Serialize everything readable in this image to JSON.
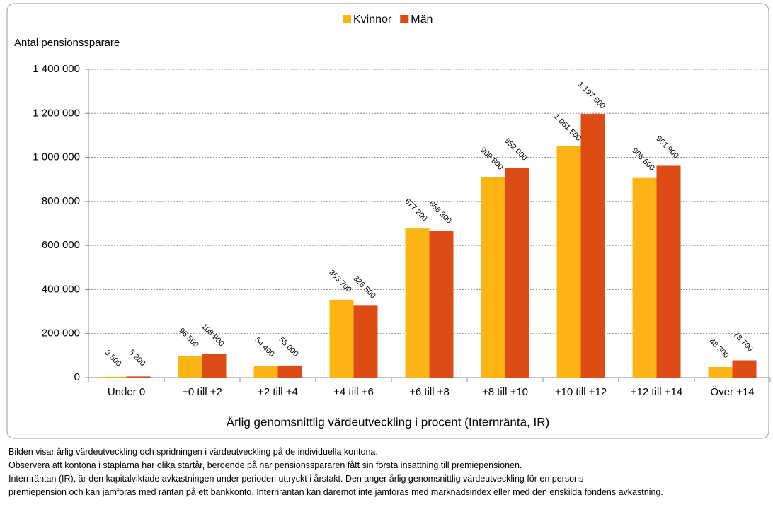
{
  "chart_data": {
    "type": "bar",
    "y_label": "Antal pensionssparare",
    "x_label": "Årlig genomsnittlig värdeutveckling i procent (Internränta, IR)",
    "categories": [
      "Under 0",
      "+0 till +2",
      "+2 till +4",
      "+4 till +6",
      "+6 till +8",
      "+8 till +10",
      "+10 till +12",
      "+12 till +14",
      "Över +14"
    ],
    "series": [
      {
        "name": "Kvinnor",
        "color": "#FDB515",
        "values": [
          3500,
          96500,
          54400,
          353700,
          677200,
          909800,
          1051500,
          906600,
          48300
        ],
        "value_labels": [
          "3 500",
          "96 500",
          "54 400",
          "353 700",
          "677 200",
          "909 800",
          "1 051 500",
          "906 600",
          "48 300"
        ]
      },
      {
        "name": "Män",
        "color": "#DE4C15",
        "values": [
          5200,
          108900,
          55000,
          326500,
          666300,
          952000,
          1197600,
          961900,
          78700
        ],
        "value_labels": [
          "5 200",
          "108 900",
          "55 000",
          "326 500",
          "666 300",
          "952 000",
          "1 197 600",
          "961 900",
          "78 700"
        ]
      }
    ],
    "ylim": [
      0,
      1400000
    ],
    "yticks": [
      0,
      {
        "value": 200000,
        "label": "200 000"
      },
      {
        "value": 400000,
        "label": "400 000"
      },
      {
        "value": 600000,
        "label": "600 000"
      },
      {
        "value": 800000,
        "label": "800 000"
      },
      {
        "value": 1000000,
        "label": "1 000 000"
      },
      {
        "value": 1200000,
        "label": "1 200 000"
      },
      {
        "value": 1400000,
        "label": "1 400 000"
      }
    ],
    "grid": true,
    "legend": "top"
  },
  "caption": [
    "Bilden visar  årlig värdeutveckling och spridningen i värdeutveckling på de individuella kontona.",
    "Observera att kontona i staplarna har olika startår, beroende på när pensionsspararen fått sin första insättning till premiepensionen.",
    "Internräntan (IR), är den kapitalviktade avkastningen under perioden uttryckt i årstakt. Den anger årlig genomsnittlig värdeutveckling för en persons",
    "premiepension och kan jämföras med räntan på ett bankkonto. Internräntan kan däremot inte jämföras med marknadsindex eller med den enskilda fondens avkastning."
  ]
}
